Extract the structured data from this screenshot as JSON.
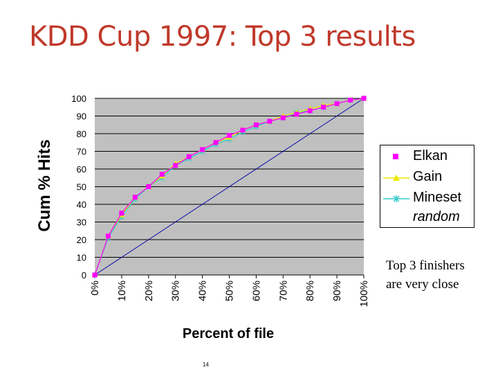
{
  "slide": {
    "title": "KDD Cup 1997: Top 3 results",
    "caption_lines": [
      "Top 3 finishers",
      "are very close"
    ],
    "page_number": "14"
  },
  "colors": {
    "plot_background": "#c0c0c0",
    "gridline": "#000000",
    "elkan": "#ff00ff",
    "gain": "#e8e800",
    "mineset": "#33cccc",
    "random": "#0000aa",
    "title": "#c0392b"
  },
  "chart_data": {
    "type": "line",
    "title": "",
    "xlabel": "Percent of file",
    "ylabel": "Cum % Hits",
    "x": [
      0,
      5,
      10,
      15,
      20,
      25,
      30,
      35,
      40,
      45,
      50,
      55,
      60,
      65,
      70,
      75,
      80,
      85,
      90,
      95,
      100
    ],
    "x_tick_labels": [
      "0%",
      "10%",
      "20%",
      "30%",
      "40%",
      "50%",
      "60%",
      "70%",
      "80%",
      "90%",
      "100%"
    ],
    "x_ticks": [
      0,
      10,
      20,
      30,
      40,
      50,
      60,
      70,
      80,
      90,
      100
    ],
    "ylim": [
      0,
      100
    ],
    "y_ticks": [
      0,
      10,
      20,
      30,
      40,
      50,
      60,
      70,
      80,
      90,
      100
    ],
    "grid": true,
    "legend_position": "right",
    "series": [
      {
        "name": "Elkan",
        "marker": "square",
        "values": [
          0,
          22,
          35,
          44,
          50,
          57,
          62,
          67,
          71,
          75,
          79,
          82,
          85,
          87,
          89,
          91,
          93,
          95,
          97,
          99,
          100
        ]
      },
      {
        "name": "Gain",
        "marker": "triangle",
        "values": [
          0,
          22,
          34,
          44,
          50,
          56,
          63,
          67,
          71,
          75,
          78,
          82,
          85,
          87,
          90,
          92,
          94,
          96,
          97,
          99,
          100
        ]
      },
      {
        "name": "Mineset",
        "marker": "star",
        "values": [
          0,
          21,
          33,
          43,
          50,
          55,
          62,
          66,
          70,
          74,
          77,
          81,
          84,
          87,
          89,
          92,
          93,
          95,
          97,
          99,
          100
        ]
      },
      {
        "name": "random",
        "marker": "none",
        "values": [
          0,
          5,
          10,
          15,
          20,
          25,
          30,
          35,
          40,
          45,
          50,
          55,
          60,
          65,
          70,
          75,
          80,
          85,
          90,
          95,
          100
        ]
      }
    ]
  }
}
